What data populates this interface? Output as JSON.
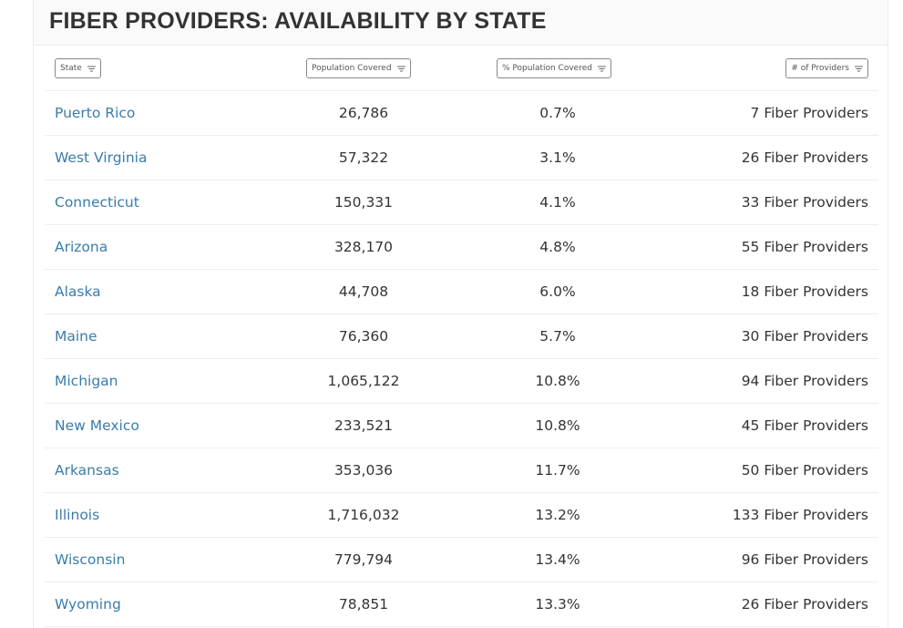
{
  "title": "FIBER PROVIDERS: AVAILABILITY BY STATE",
  "columns": {
    "state": "State",
    "population": "Population Covered",
    "pct": "% Population Covered",
    "providers": "# of Providers"
  },
  "rows": [
    {
      "state": "Puerto Rico",
      "population": "26,786",
      "pct": "0.7%",
      "providers": "7 Fiber Providers"
    },
    {
      "state": "West Virginia",
      "population": "57,322",
      "pct": "3.1%",
      "providers": "26 Fiber Providers"
    },
    {
      "state": "Connecticut",
      "population": "150,331",
      "pct": "4.1%",
      "providers": "33 Fiber Providers"
    },
    {
      "state": "Arizona",
      "population": "328,170",
      "pct": "4.8%",
      "providers": "55 Fiber Providers"
    },
    {
      "state": "Alaska",
      "population": "44,708",
      "pct": "6.0%",
      "providers": "18 Fiber Providers"
    },
    {
      "state": "Maine",
      "population": "76,360",
      "pct": "5.7%",
      "providers": "30 Fiber Providers"
    },
    {
      "state": "Michigan",
      "population": "1,065,122",
      "pct": "10.8%",
      "providers": "94 Fiber Providers"
    },
    {
      "state": "New Mexico",
      "population": "233,521",
      "pct": "10.8%",
      "providers": "45 Fiber Providers"
    },
    {
      "state": "Arkansas",
      "population": "353,036",
      "pct": "11.7%",
      "providers": "50 Fiber Providers"
    },
    {
      "state": "Illinois",
      "population": "1,716,032",
      "pct": "13.2%",
      "providers": "133 Fiber Providers"
    },
    {
      "state": "Wisconsin",
      "population": "779,794",
      "pct": "13.4%",
      "providers": "96 Fiber Providers"
    },
    {
      "state": "Wyoming",
      "population": "78,851",
      "pct": "13.3%",
      "providers": "26 Fiber Providers"
    }
  ],
  "colors": {
    "link": "#3a7cab",
    "text": "#333333",
    "title": "#333333",
    "border": "#eeeeee"
  },
  "icons": {
    "sort": "filter-lines-icon"
  }
}
